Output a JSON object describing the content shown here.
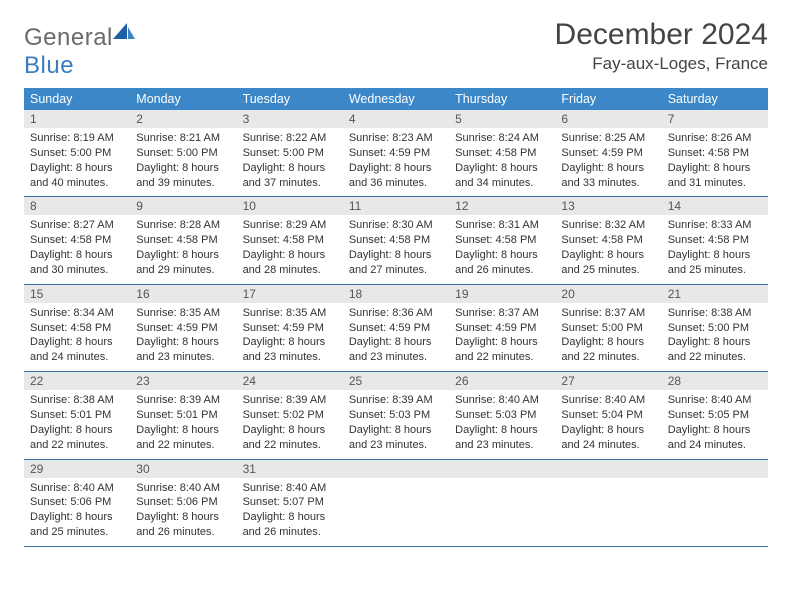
{
  "logo": {
    "text1": "General",
    "text2": "Blue"
  },
  "title": "December 2024",
  "location": "Fay-aux-Loges, France",
  "colors": {
    "header_bg": "#3b87c8",
    "header_text": "#ffffff",
    "week_divider": "#3b6fa3",
    "daynum_bg": "#e8e8e8",
    "body_text": "#333333",
    "logo_gray": "#6a6a6a",
    "logo_blue": "#3b7bbf"
  },
  "day_names": [
    "Sunday",
    "Monday",
    "Tuesday",
    "Wednesday",
    "Thursday",
    "Friday",
    "Saturday"
  ],
  "days": [
    {
      "n": "1",
      "sunrise": "Sunrise: 8:19 AM",
      "sunset": "Sunset: 5:00 PM",
      "dl1": "Daylight: 8 hours",
      "dl2": "and 40 minutes."
    },
    {
      "n": "2",
      "sunrise": "Sunrise: 8:21 AM",
      "sunset": "Sunset: 5:00 PM",
      "dl1": "Daylight: 8 hours",
      "dl2": "and 39 minutes."
    },
    {
      "n": "3",
      "sunrise": "Sunrise: 8:22 AM",
      "sunset": "Sunset: 5:00 PM",
      "dl1": "Daylight: 8 hours",
      "dl2": "and 37 minutes."
    },
    {
      "n": "4",
      "sunrise": "Sunrise: 8:23 AM",
      "sunset": "Sunset: 4:59 PM",
      "dl1": "Daylight: 8 hours",
      "dl2": "and 36 minutes."
    },
    {
      "n": "5",
      "sunrise": "Sunrise: 8:24 AM",
      "sunset": "Sunset: 4:58 PM",
      "dl1": "Daylight: 8 hours",
      "dl2": "and 34 minutes."
    },
    {
      "n": "6",
      "sunrise": "Sunrise: 8:25 AM",
      "sunset": "Sunset: 4:59 PM",
      "dl1": "Daylight: 8 hours",
      "dl2": "and 33 minutes."
    },
    {
      "n": "7",
      "sunrise": "Sunrise: 8:26 AM",
      "sunset": "Sunset: 4:58 PM",
      "dl1": "Daylight: 8 hours",
      "dl2": "and 31 minutes."
    },
    {
      "n": "8",
      "sunrise": "Sunrise: 8:27 AM",
      "sunset": "Sunset: 4:58 PM",
      "dl1": "Daylight: 8 hours",
      "dl2": "and 30 minutes."
    },
    {
      "n": "9",
      "sunrise": "Sunrise: 8:28 AM",
      "sunset": "Sunset: 4:58 PM",
      "dl1": "Daylight: 8 hours",
      "dl2": "and 29 minutes."
    },
    {
      "n": "10",
      "sunrise": "Sunrise: 8:29 AM",
      "sunset": "Sunset: 4:58 PM",
      "dl1": "Daylight: 8 hours",
      "dl2": "and 28 minutes."
    },
    {
      "n": "11",
      "sunrise": "Sunrise: 8:30 AM",
      "sunset": "Sunset: 4:58 PM",
      "dl1": "Daylight: 8 hours",
      "dl2": "and 27 minutes."
    },
    {
      "n": "12",
      "sunrise": "Sunrise: 8:31 AM",
      "sunset": "Sunset: 4:58 PM",
      "dl1": "Daylight: 8 hours",
      "dl2": "and 26 minutes."
    },
    {
      "n": "13",
      "sunrise": "Sunrise: 8:32 AM",
      "sunset": "Sunset: 4:58 PM",
      "dl1": "Daylight: 8 hours",
      "dl2": "and 25 minutes."
    },
    {
      "n": "14",
      "sunrise": "Sunrise: 8:33 AM",
      "sunset": "Sunset: 4:58 PM",
      "dl1": "Daylight: 8 hours",
      "dl2": "and 25 minutes."
    },
    {
      "n": "15",
      "sunrise": "Sunrise: 8:34 AM",
      "sunset": "Sunset: 4:58 PM",
      "dl1": "Daylight: 8 hours",
      "dl2": "and 24 minutes."
    },
    {
      "n": "16",
      "sunrise": "Sunrise: 8:35 AM",
      "sunset": "Sunset: 4:59 PM",
      "dl1": "Daylight: 8 hours",
      "dl2": "and 23 minutes."
    },
    {
      "n": "17",
      "sunrise": "Sunrise: 8:35 AM",
      "sunset": "Sunset: 4:59 PM",
      "dl1": "Daylight: 8 hours",
      "dl2": "and 23 minutes."
    },
    {
      "n": "18",
      "sunrise": "Sunrise: 8:36 AM",
      "sunset": "Sunset: 4:59 PM",
      "dl1": "Daylight: 8 hours",
      "dl2": "and 23 minutes."
    },
    {
      "n": "19",
      "sunrise": "Sunrise: 8:37 AM",
      "sunset": "Sunset: 4:59 PM",
      "dl1": "Daylight: 8 hours",
      "dl2": "and 22 minutes."
    },
    {
      "n": "20",
      "sunrise": "Sunrise: 8:37 AM",
      "sunset": "Sunset: 5:00 PM",
      "dl1": "Daylight: 8 hours",
      "dl2": "and 22 minutes."
    },
    {
      "n": "21",
      "sunrise": "Sunrise: 8:38 AM",
      "sunset": "Sunset: 5:00 PM",
      "dl1": "Daylight: 8 hours",
      "dl2": "and 22 minutes."
    },
    {
      "n": "22",
      "sunrise": "Sunrise: 8:38 AM",
      "sunset": "Sunset: 5:01 PM",
      "dl1": "Daylight: 8 hours",
      "dl2": "and 22 minutes."
    },
    {
      "n": "23",
      "sunrise": "Sunrise: 8:39 AM",
      "sunset": "Sunset: 5:01 PM",
      "dl1": "Daylight: 8 hours",
      "dl2": "and 22 minutes."
    },
    {
      "n": "24",
      "sunrise": "Sunrise: 8:39 AM",
      "sunset": "Sunset: 5:02 PM",
      "dl1": "Daylight: 8 hours",
      "dl2": "and 22 minutes."
    },
    {
      "n": "25",
      "sunrise": "Sunrise: 8:39 AM",
      "sunset": "Sunset: 5:03 PM",
      "dl1": "Daylight: 8 hours",
      "dl2": "and 23 minutes."
    },
    {
      "n": "26",
      "sunrise": "Sunrise: 8:40 AM",
      "sunset": "Sunset: 5:03 PM",
      "dl1": "Daylight: 8 hours",
      "dl2": "and 23 minutes."
    },
    {
      "n": "27",
      "sunrise": "Sunrise: 8:40 AM",
      "sunset": "Sunset: 5:04 PM",
      "dl1": "Daylight: 8 hours",
      "dl2": "and 24 minutes."
    },
    {
      "n": "28",
      "sunrise": "Sunrise: 8:40 AM",
      "sunset": "Sunset: 5:05 PM",
      "dl1": "Daylight: 8 hours",
      "dl2": "and 24 minutes."
    },
    {
      "n": "29",
      "sunrise": "Sunrise: 8:40 AM",
      "sunset": "Sunset: 5:06 PM",
      "dl1": "Daylight: 8 hours",
      "dl2": "and 25 minutes."
    },
    {
      "n": "30",
      "sunrise": "Sunrise: 8:40 AM",
      "sunset": "Sunset: 5:06 PM",
      "dl1": "Daylight: 8 hours",
      "dl2": "and 26 minutes."
    },
    {
      "n": "31",
      "sunrise": "Sunrise: 8:40 AM",
      "sunset": "Sunset: 5:07 PM",
      "dl1": "Daylight: 8 hours",
      "dl2": "and 26 minutes."
    }
  ]
}
